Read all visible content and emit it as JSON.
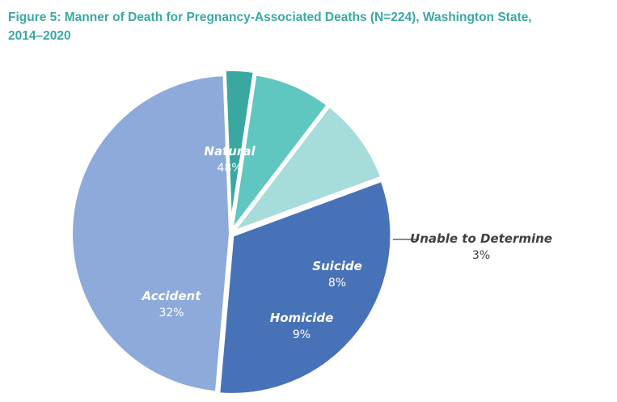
{
  "title_line1": "Figure 5: Manner of Death for Pregnancy-Associated Deaths (N=224), Washington State,",
  "title_line2": "2014–2020",
  "chart_data": {
    "type": "pie",
    "title": "Figure 5: Manner of Death for Pregnancy-Associated Deaths (N=224), Washington State, 2014–2020",
    "slices": [
      {
        "label": "Natural",
        "value": 48,
        "value_label": "48%",
        "color": "#8eaadb",
        "text_color": "#ffffff"
      },
      {
        "label": "Unable to Determine",
        "value": 3,
        "value_label": "3%",
        "color": "#3aa8a0",
        "text_color": "#404040"
      },
      {
        "label": "Suicide",
        "value": 8,
        "value_label": "8%",
        "color": "#5fc7c0",
        "text_color": "#ffffff"
      },
      {
        "label": "Homicide",
        "value": 9,
        "value_label": "9%",
        "color": "#a6dcd9",
        "text_color": "#ffffff"
      },
      {
        "label": "Accident",
        "value": 32,
        "value_label": "32%",
        "color": "#4872b8",
        "text_color": "#ffffff"
      }
    ]
  }
}
